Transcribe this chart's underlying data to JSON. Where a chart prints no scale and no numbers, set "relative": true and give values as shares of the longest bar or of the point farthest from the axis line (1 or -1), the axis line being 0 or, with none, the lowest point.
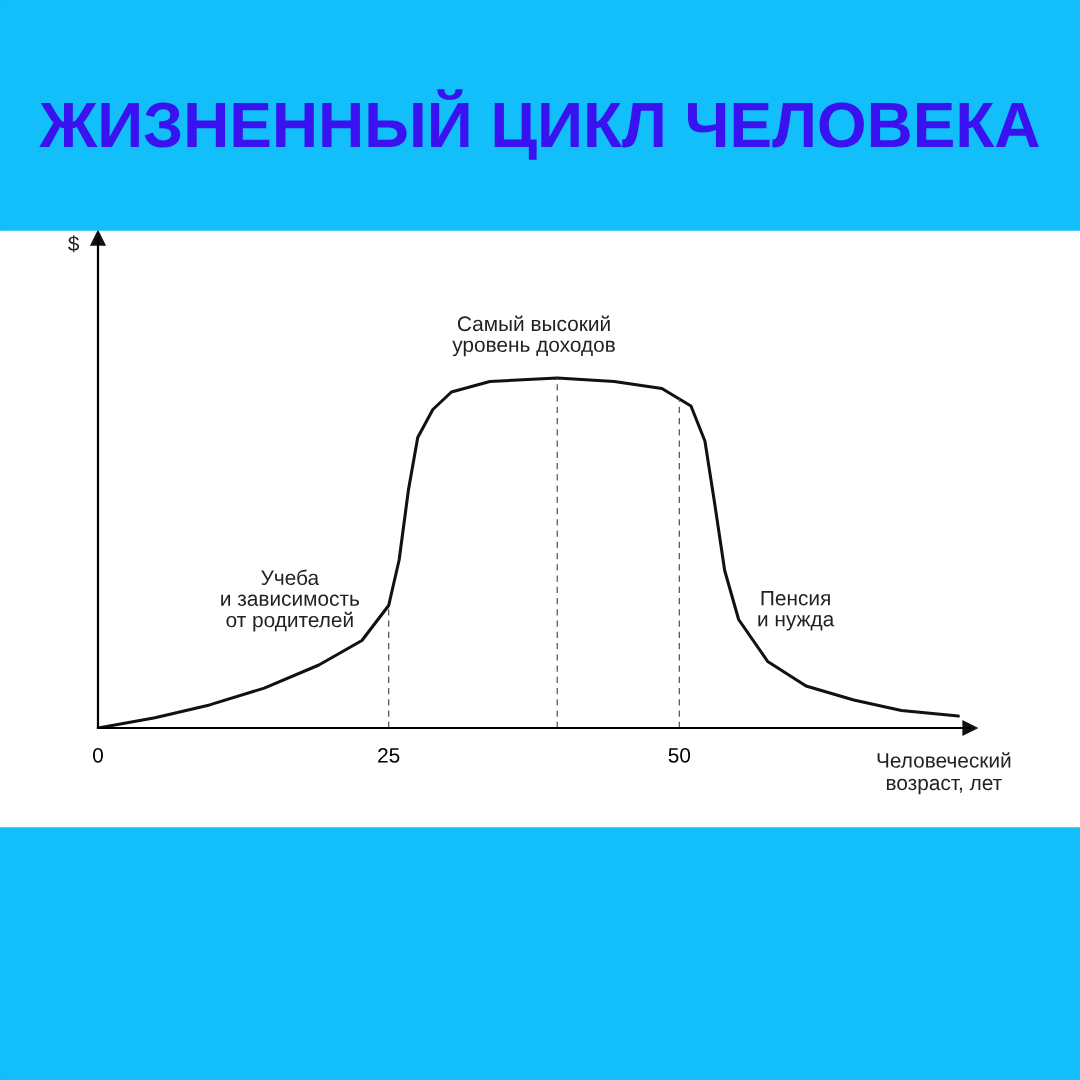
{
  "chart_data": {
    "type": "line",
    "title": "ЖИЗНЕННЫЙ ЦИКЛ ЧЕЛОВЕКА",
    "xlabel": "Человеческий\nвозраст, лет",
    "relative": true,
    "color": "#111111",
    "marker": "none",
    "line_style": "solid",
    "grid": false,
    "legend": false,
    "x": [
      0,
      4.9,
      9.6,
      14.3,
      19.0,
      22.7,
      25,
      25.9,
      26.7,
      27.5,
      28.8,
      30.4,
      33.7,
      39.5,
      44.4,
      48.5,
      51.0,
      52.2,
      53.0,
      53.9,
      55.1,
      57.6,
      60.9,
      65.0,
      69.1,
      74.0
    ],
    "values": [
      0,
      0.029,
      0.066,
      0.114,
      0.18,
      0.25,
      0.35,
      0.48,
      0.68,
      0.83,
      0.91,
      0.96,
      0.99,
      1.0,
      0.99,
      0.97,
      0.92,
      0.82,
      0.65,
      0.45,
      0.31,
      0.19,
      0.12,
      0.08,
      0.05,
      0.034
    ],
    "xlim": [
      0,
      75
    ],
    "xticks": [
      0,
      25,
      50
    ],
    "ref_lines": [
      {
        "axis": "x",
        "value": 25,
        "line_style": "dashed",
        "color": "#555555"
      },
      {
        "axis": "x",
        "value": 39.5,
        "line_style": "dashed",
        "color": "#555555"
      },
      {
        "axis": "x",
        "value": 50,
        "line_style": "dashed",
        "color": "#555555"
      }
    ],
    "annotations": [
      "$",
      "Учеба\nи зависимость\nот родителей",
      "Самый высокий\nуровень доходов",
      "Пенсия\nи нужда"
    ]
  }
}
